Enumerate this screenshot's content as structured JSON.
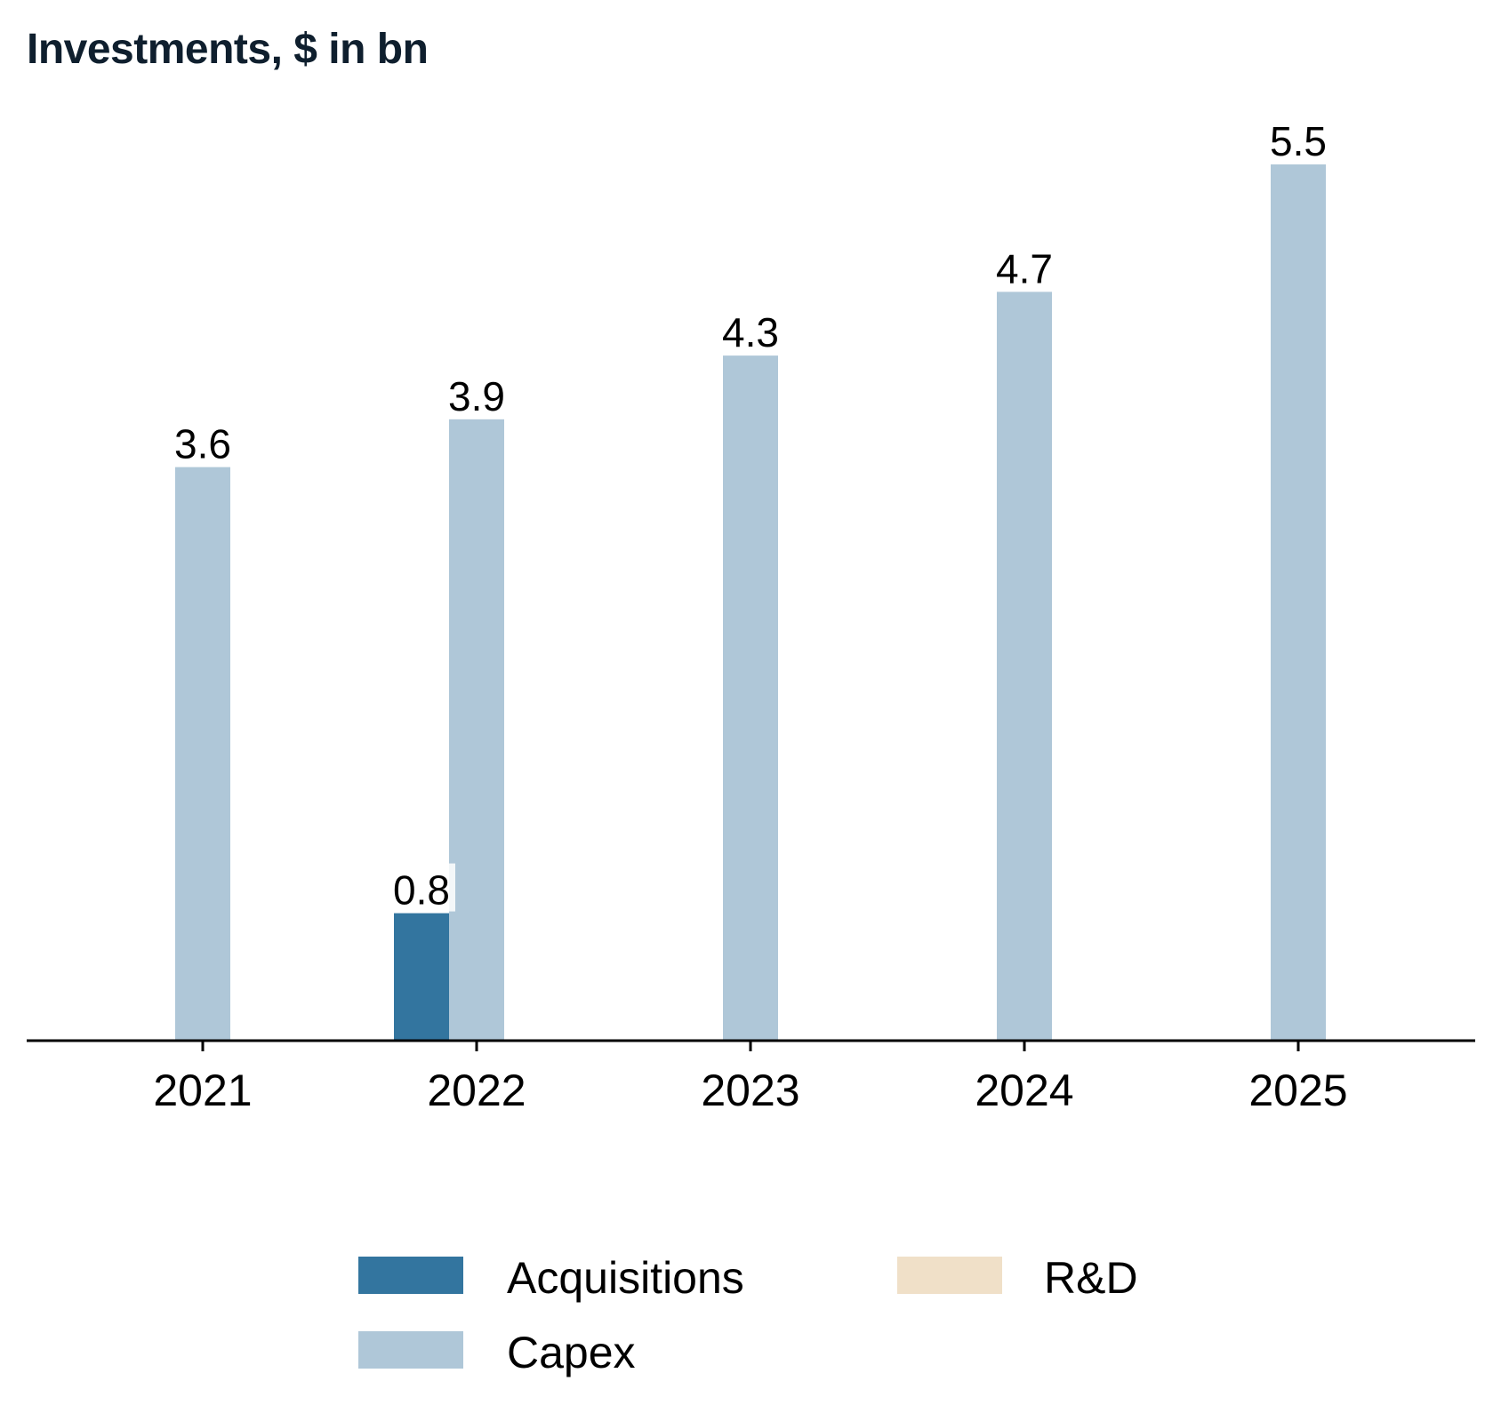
{
  "chart_data": {
    "type": "bar",
    "title": "Investments, $ in bn",
    "categories": [
      "2021",
      "2022",
      "2023",
      "2024",
      "2025"
    ],
    "series": [
      {
        "name": "Acquisitions",
        "color": "#33759f",
        "values": [
          null,
          0.8,
          null,
          null,
          null
        ]
      },
      {
        "name": "Capex",
        "color": "#afc7d8",
        "values": [
          3.6,
          3.9,
          4.3,
          4.7,
          5.5
        ]
      },
      {
        "name": "R&D",
        "color": "#f0e0c8",
        "values": [
          null,
          null,
          null,
          null,
          null
        ]
      }
    ],
    "data_labels": {
      "Acquisitions": [
        "",
        "0.8",
        "",
        "",
        ""
      ],
      "Capex": [
        "3.6",
        "3.9",
        "4.3",
        "4.7",
        "5.5"
      ]
    },
    "ylim": [
      0,
      5.5
    ],
    "xlabel": "",
    "ylabel": "",
    "legend_position": "bottom-center",
    "grid": false
  }
}
